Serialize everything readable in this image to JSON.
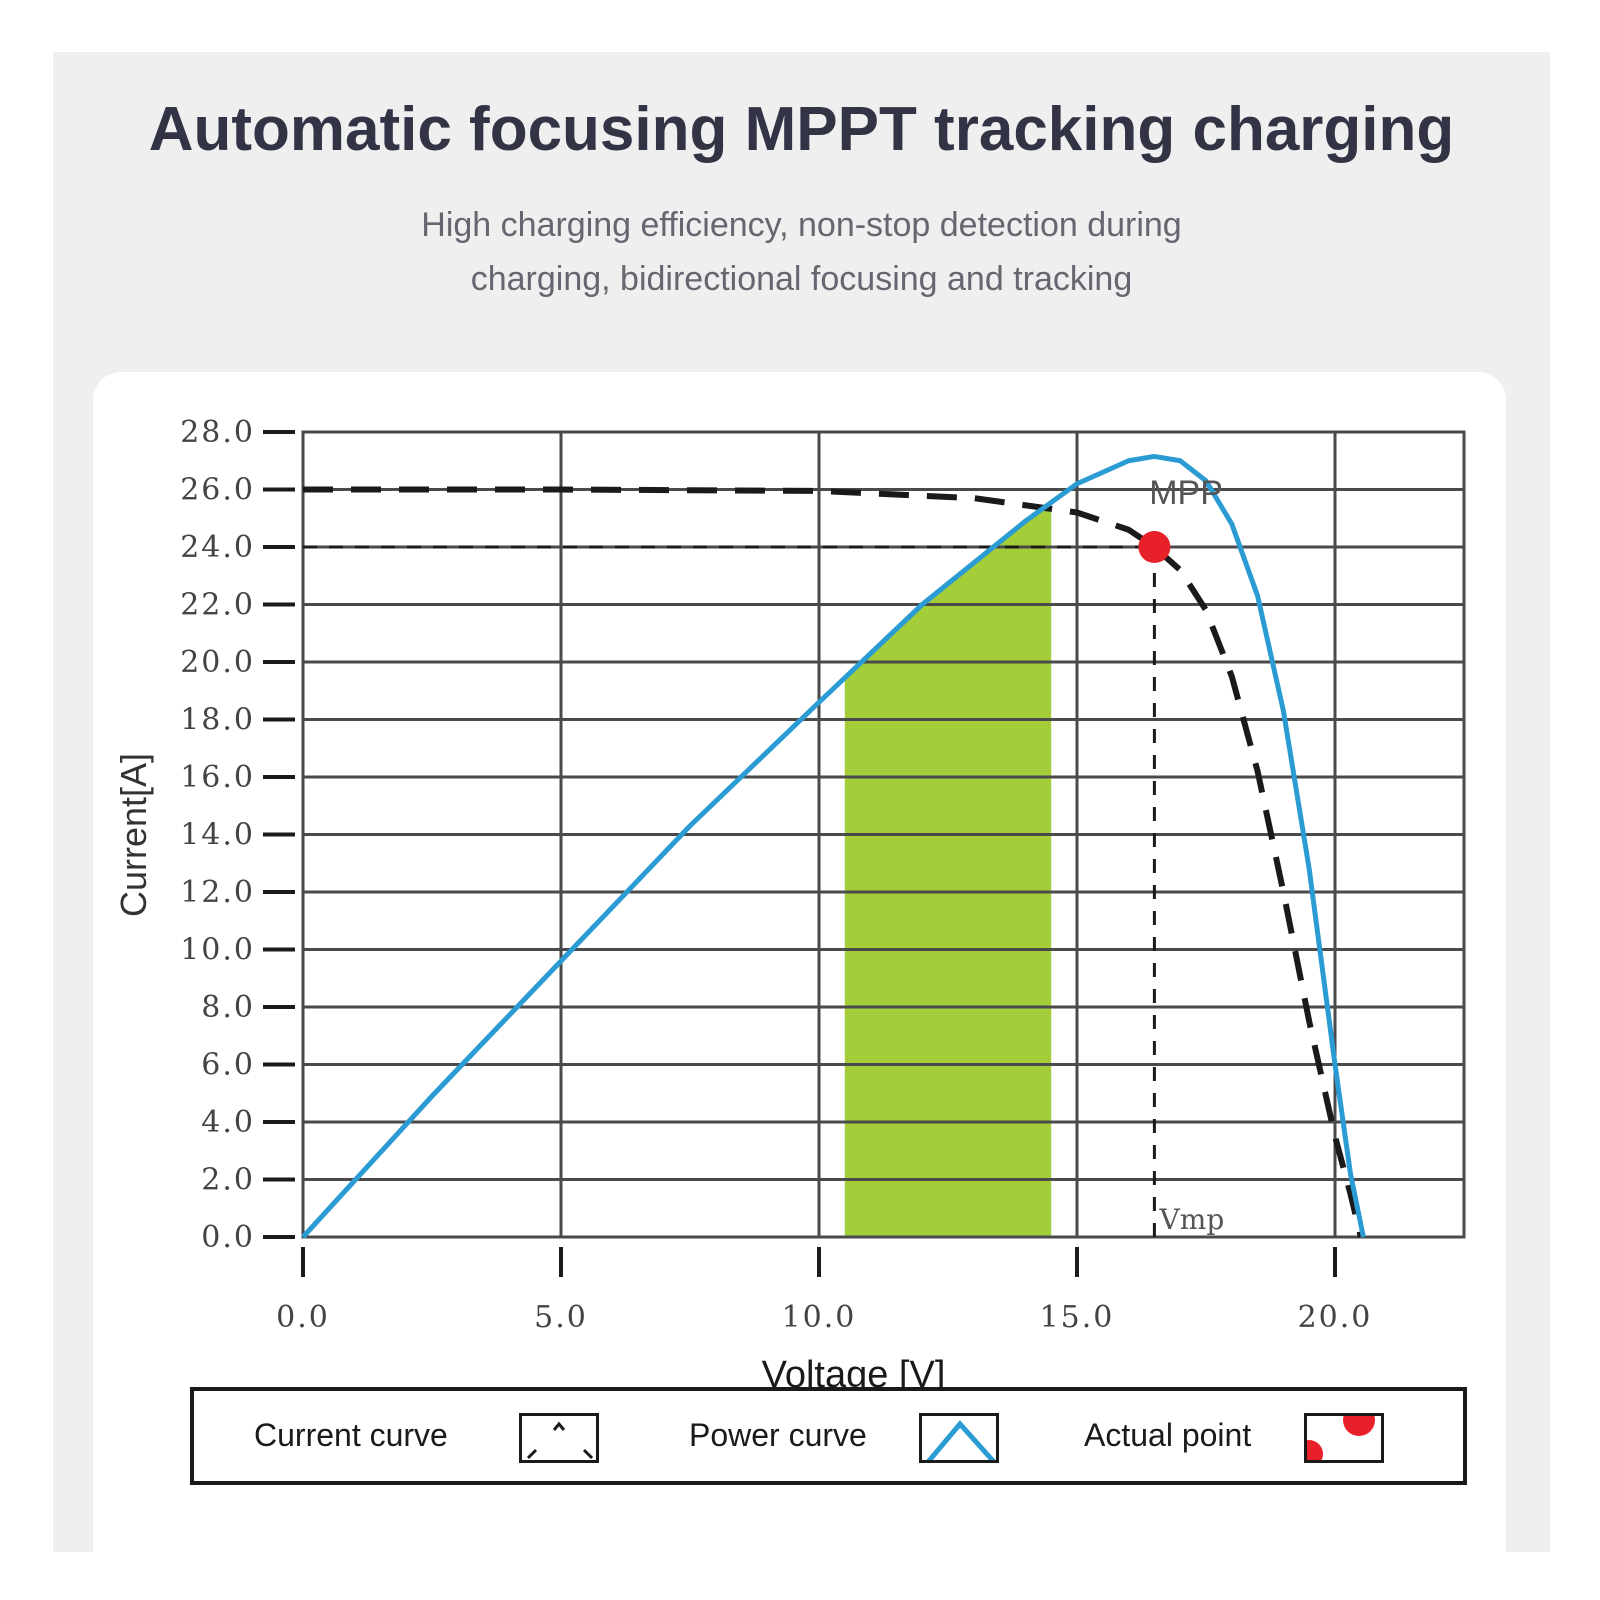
{
  "header": {
    "title": "Automatic focusing MPPT tracking charging",
    "subtitle_line1": "High charging efficiency, non-stop detection during",
    "subtitle_line2": "charging, bidirectional focusing and tracking"
  },
  "chart_data": {
    "type": "line",
    "xlabel": "Voltage [V]",
    "ylabel": "Current[A]",
    "xlim": [
      0,
      22.5
    ],
    "ylim": [
      0,
      28
    ],
    "x_ticks": [
      "0.0",
      "5.0",
      "10.0",
      "15.0",
      "20.0"
    ],
    "x_tick_values": [
      0,
      5,
      10,
      15,
      20
    ],
    "y_ticks": [
      "0.0",
      "2.0",
      "4.0",
      "6.0",
      "8.0",
      "10.0",
      "12.0",
      "14.0",
      "16.0",
      "18.0",
      "20.0",
      "22.0",
      "24.0",
      "26.0",
      "28.0"
    ],
    "y_tick_values": [
      0,
      2,
      4,
      6,
      8,
      10,
      12,
      14,
      16,
      18,
      20,
      22,
      24,
      26,
      28
    ],
    "grid": true,
    "series": [
      {
        "name": "Current curve",
        "style": "dashed",
        "color": "#1a1a1a",
        "x": [
          0,
          5,
          10,
          13,
          15,
          16,
          16.5,
          17,
          17.5,
          18,
          18.5,
          19,
          19.5,
          20,
          20.3,
          20.5
        ],
        "y": [
          26,
          26,
          25.95,
          25.7,
          25.2,
          24.6,
          24.0,
          23.2,
          21.8,
          19.5,
          16.2,
          12.0,
          7.5,
          3.5,
          1.5,
          0
        ]
      },
      {
        "name": "Power curve",
        "style": "solid",
        "color": "#2b9bd4",
        "x": [
          0,
          2.5,
          5,
          7.5,
          10,
          12,
          14,
          15,
          16,
          16.5,
          17,
          17.5,
          18,
          18.5,
          19,
          19.5,
          20,
          20.3,
          20.55
        ],
        "y": [
          0,
          4.9,
          9.6,
          14.3,
          18.6,
          22.0,
          24.9,
          26.2,
          27.0,
          27.15,
          27.0,
          26.3,
          24.8,
          22.3,
          18.3,
          12.8,
          6.0,
          2.2,
          0
        ]
      }
    ],
    "shaded_region": {
      "x_from": 10.5,
      "x_to": 14.5,
      "color": "#a3cd39"
    },
    "reference_lines": {
      "current": 24,
      "voltage": 16.5
    },
    "points": [
      {
        "name": "Actual point",
        "x": 16.5,
        "y": 24,
        "color": "#e8202a"
      }
    ],
    "annotations": {
      "mpp": "MPP",
      "vmp": "Vmp"
    }
  },
  "legend": {
    "items": [
      {
        "label": "Current curve",
        "icon": "dashed-curve-icon"
      },
      {
        "label": "Power curve",
        "icon": "blue-peak-icon"
      },
      {
        "label": "Actual point",
        "icon": "red-dot-icon"
      }
    ]
  }
}
